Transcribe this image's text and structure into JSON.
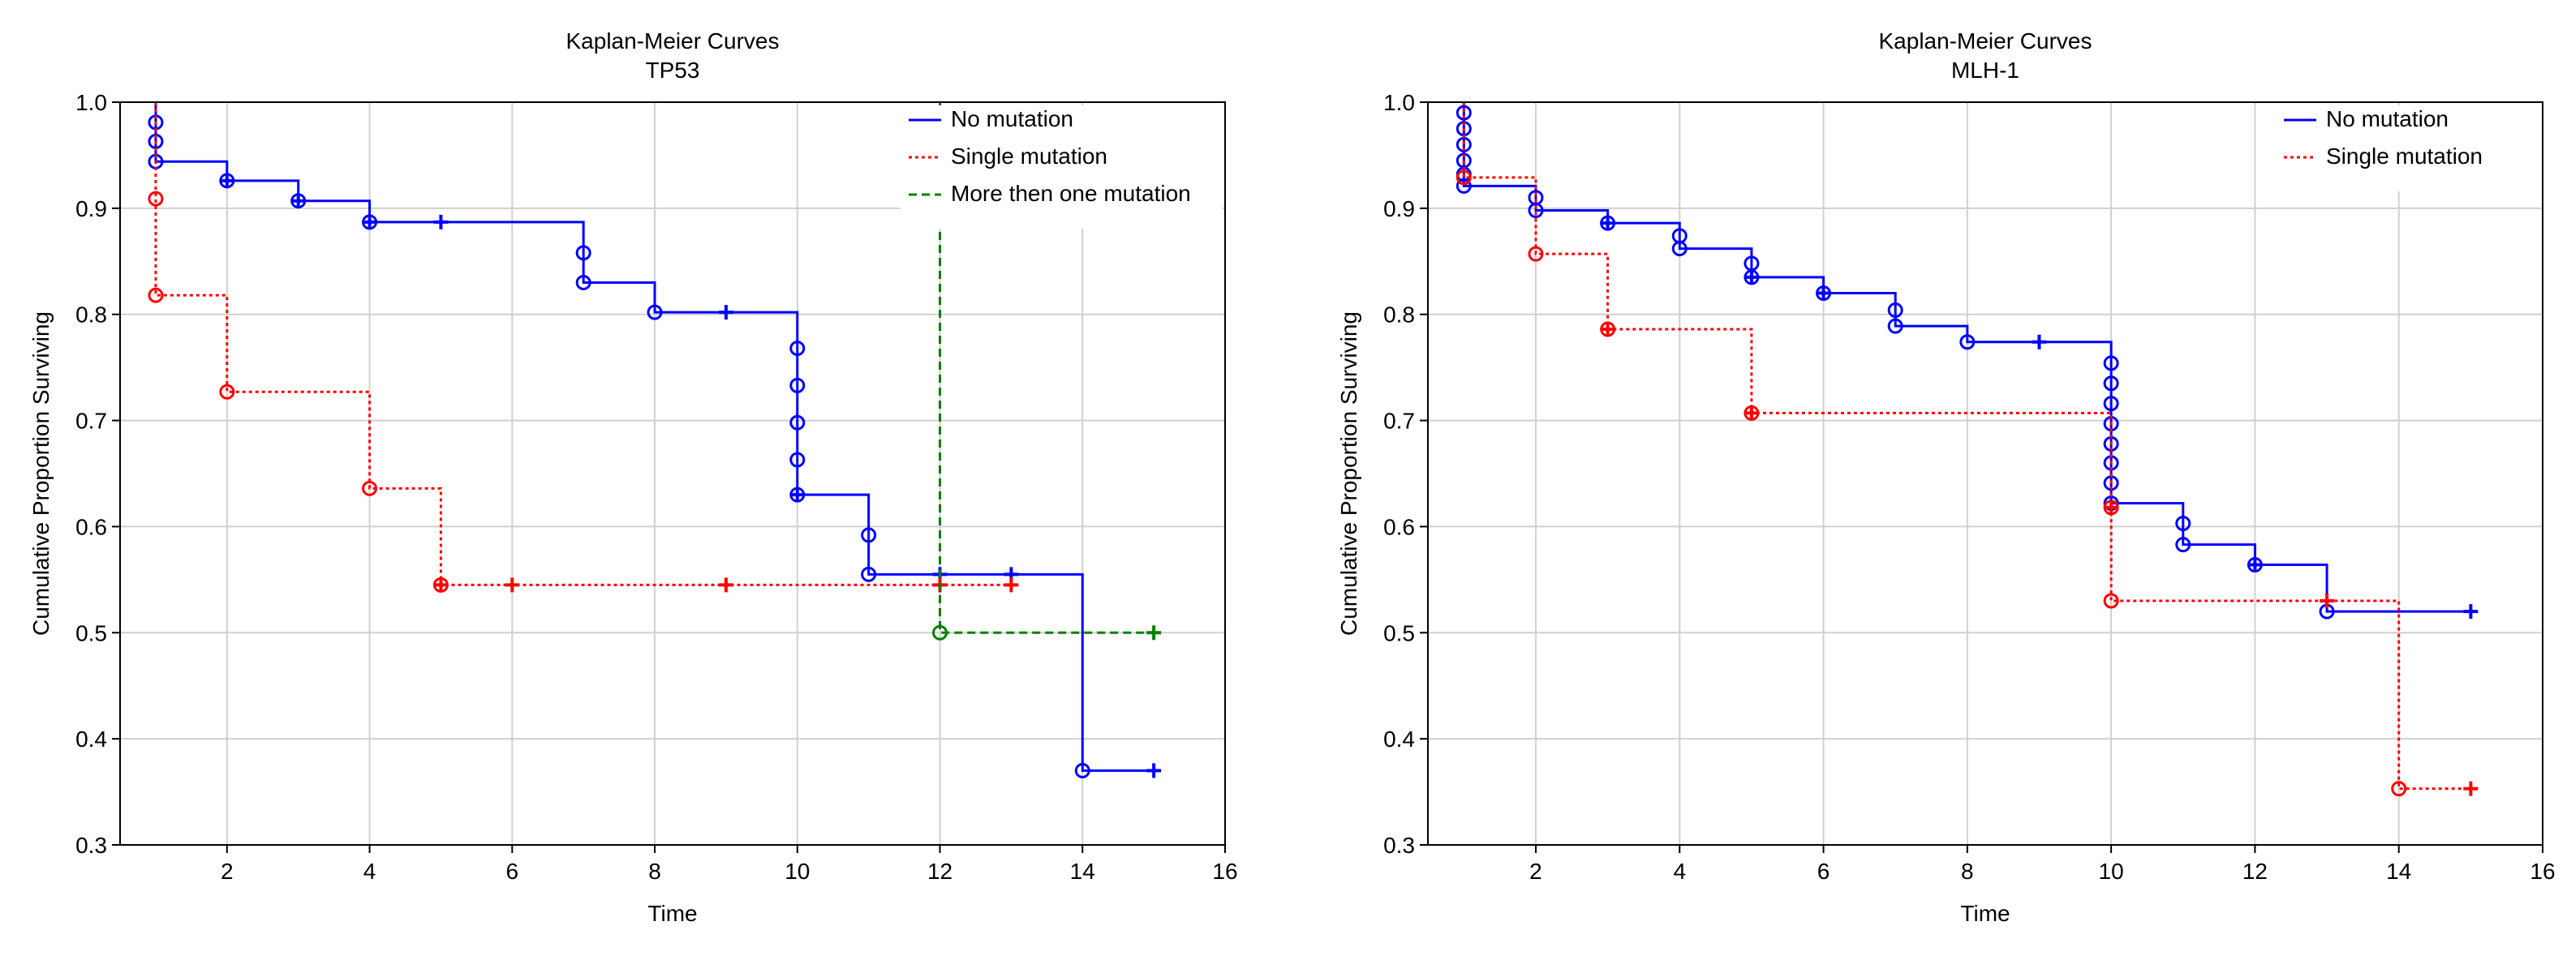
{
  "chart_data": [
    {
      "type": "line",
      "title": "Kaplan-Meier Curves",
      "subtitle": "TP53",
      "xlabel": "Time",
      "ylabel": "Cumulative Proportion Surviving",
      "xlim": [
        0.5,
        16
      ],
      "ylim": [
        0.3,
        1.0
      ],
      "x_ticks": [
        2,
        4,
        6,
        8,
        10,
        12,
        14,
        16
      ],
      "y_ticks": [
        0.3,
        0.4,
        0.5,
        0.6,
        0.7,
        0.8,
        0.9,
        1.0
      ],
      "x_tick_labels": [
        "2",
        "4",
        "6",
        "8",
        "10",
        "12",
        "14",
        "16"
      ],
      "y_tick_labels": [
        "0.3",
        "0.4",
        "0.5",
        "0.6",
        "0.7",
        "0.8",
        "0.9",
        "1.0"
      ],
      "grid": true,
      "legend_position": "top-right",
      "series": [
        {
          "name": "No mutation",
          "color": "#0000ff",
          "style": "solid",
          "steps": [
            [
              1,
              1.0
            ],
            [
              1,
              0.944
            ],
            [
              2,
              0.926
            ],
            [
              3,
              0.907
            ],
            [
              4,
              0.887
            ],
            [
              7,
              0.83
            ],
            [
              8,
              0.802
            ],
            [
              10,
              0.63
            ],
            [
              11,
              0.555
            ],
            [
              14,
              0.37
            ],
            [
              15,
              0.37
            ]
          ],
          "failures": [
            [
              1,
              0.981
            ],
            [
              1,
              0.963
            ],
            [
              1,
              0.944
            ],
            [
              2,
              0.926
            ],
            [
              3,
              0.907
            ],
            [
              4,
              0.887
            ],
            [
              7,
              0.858
            ],
            [
              7,
              0.83
            ],
            [
              8,
              0.802
            ],
            [
              10,
              0.768
            ],
            [
              10,
              0.733
            ],
            [
              10,
              0.698
            ],
            [
              10,
              0.663
            ],
            [
              10,
              0.63
            ],
            [
              11,
              0.592
            ],
            [
              11,
              0.555
            ],
            [
              14,
              0.37
            ]
          ],
          "censored": [
            [
              2,
              0.926
            ],
            [
              3,
              0.907
            ],
            [
              4,
              0.887
            ],
            [
              5,
              0.887
            ],
            [
              9,
              0.802
            ],
            [
              10,
              0.63
            ],
            [
              12,
              0.555
            ],
            [
              13,
              0.555
            ],
            [
              15,
              0.37
            ]
          ]
        },
        {
          "name": "Single mutation",
          "color": "#ff0000",
          "style": "dotted",
          "steps": [
            [
              1,
              1.0
            ],
            [
              1,
              0.818
            ],
            [
              2,
              0.727
            ],
            [
              4,
              0.636
            ],
            [
              5,
              0.545
            ],
            [
              13,
              0.545
            ]
          ],
          "failures": [
            [
              1,
              0.909
            ],
            [
              1,
              0.818
            ],
            [
              2,
              0.727
            ],
            [
              4,
              0.636
            ],
            [
              5,
              0.545
            ]
          ],
          "censored": [
            [
              5,
              0.545
            ],
            [
              6,
              0.545
            ],
            [
              9,
              0.545
            ],
            [
              12,
              0.545
            ],
            [
              13,
              0.545
            ]
          ]
        },
        {
          "name": "More then one mutation",
          "color": "#008000",
          "style": "dashed",
          "steps": [
            [
              12,
              1.0
            ],
            [
              12,
              0.5
            ],
            [
              15,
              0.5
            ]
          ],
          "failures": [
            [
              12,
              0.5
            ]
          ],
          "censored": [
            [
              15,
              0.5
            ]
          ]
        }
      ]
    },
    {
      "type": "line",
      "title": "Kaplan-Meier Curves",
      "subtitle": "MLH-1",
      "xlabel": "Time",
      "ylabel": "Cumulative Proportion Surviving",
      "xlim": [
        0.5,
        16
      ],
      "ylim": [
        0.3,
        1.0
      ],
      "x_ticks": [
        2,
        4,
        6,
        8,
        10,
        12,
        14,
        16
      ],
      "y_ticks": [
        0.3,
        0.4,
        0.5,
        0.6,
        0.7,
        0.8,
        0.9,
        1.0
      ],
      "x_tick_labels": [
        "2",
        "4",
        "6",
        "8",
        "10",
        "12",
        "14",
        "16"
      ],
      "y_tick_labels": [
        "0.3",
        "0.4",
        "0.5",
        "0.6",
        "0.7",
        "0.8",
        "0.9",
        "1.0"
      ],
      "grid": true,
      "legend_position": "top-right",
      "series": [
        {
          "name": "No mutation",
          "color": "#0000ff",
          "style": "solid",
          "steps": [
            [
              1,
              1.0
            ],
            [
              1,
              0.921
            ],
            [
              2,
              0.898
            ],
            [
              3,
              0.886
            ],
            [
              4,
              0.862
            ],
            [
              5,
              0.835
            ],
            [
              6,
              0.82
            ],
            [
              7,
              0.789
            ],
            [
              8,
              0.774
            ],
            [
              10,
              0.622
            ],
            [
              11,
              0.583
            ],
            [
              12,
              0.564
            ],
            [
              13,
              0.52
            ],
            [
              15,
              0.52
            ]
          ],
          "failures": [
            [
              1,
              0.99
            ],
            [
              1,
              0.975
            ],
            [
              1,
              0.96
            ],
            [
              1,
              0.945
            ],
            [
              1,
              0.932
            ],
            [
              1,
              0.921
            ],
            [
              2,
              0.91
            ],
            [
              2,
              0.898
            ],
            [
              3,
              0.886
            ],
            [
              4,
              0.874
            ],
            [
              4,
              0.862
            ],
            [
              5,
              0.848
            ],
            [
              5,
              0.835
            ],
            [
              6,
              0.82
            ],
            [
              7,
              0.804
            ],
            [
              7,
              0.789
            ],
            [
              8,
              0.774
            ],
            [
              10,
              0.754
            ],
            [
              10,
              0.735
            ],
            [
              10,
              0.716
            ],
            [
              10,
              0.697
            ],
            [
              10,
              0.678
            ],
            [
              10,
              0.66
            ],
            [
              10,
              0.641
            ],
            [
              10,
              0.622
            ],
            [
              11,
              0.603
            ],
            [
              11,
              0.583
            ],
            [
              12,
              0.564
            ],
            [
              13,
              0.52
            ]
          ],
          "censored": [
            [
              3,
              0.886
            ],
            [
              5,
              0.835
            ],
            [
              6,
              0.82
            ],
            [
              9,
              0.774
            ],
            [
              12,
              0.564
            ],
            [
              15,
              0.52
            ]
          ]
        },
        {
          "name": "Single mutation",
          "color": "#ff0000",
          "style": "dotted",
          "steps": [
            [
              1,
              1.0
            ],
            [
              1,
              0.929
            ],
            [
              2,
              0.857
            ],
            [
              3,
              0.786
            ],
            [
              5,
              0.707
            ],
            [
              10,
              0.53
            ],
            [
              14,
              0.353
            ],
            [
              15,
              0.353
            ]
          ],
          "failures": [
            [
              1,
              0.929
            ],
            [
              2,
              0.857
            ],
            [
              3,
              0.786
            ],
            [
              5,
              0.707
            ],
            [
              10,
              0.618
            ],
            [
              10,
              0.53
            ],
            [
              14,
              0.353
            ]
          ],
          "censored": [
            [
              3,
              0.786
            ],
            [
              5,
              0.707
            ],
            [
              10,
              0.618
            ],
            [
              13,
              0.53
            ],
            [
              15,
              0.353
            ]
          ]
        }
      ]
    }
  ]
}
